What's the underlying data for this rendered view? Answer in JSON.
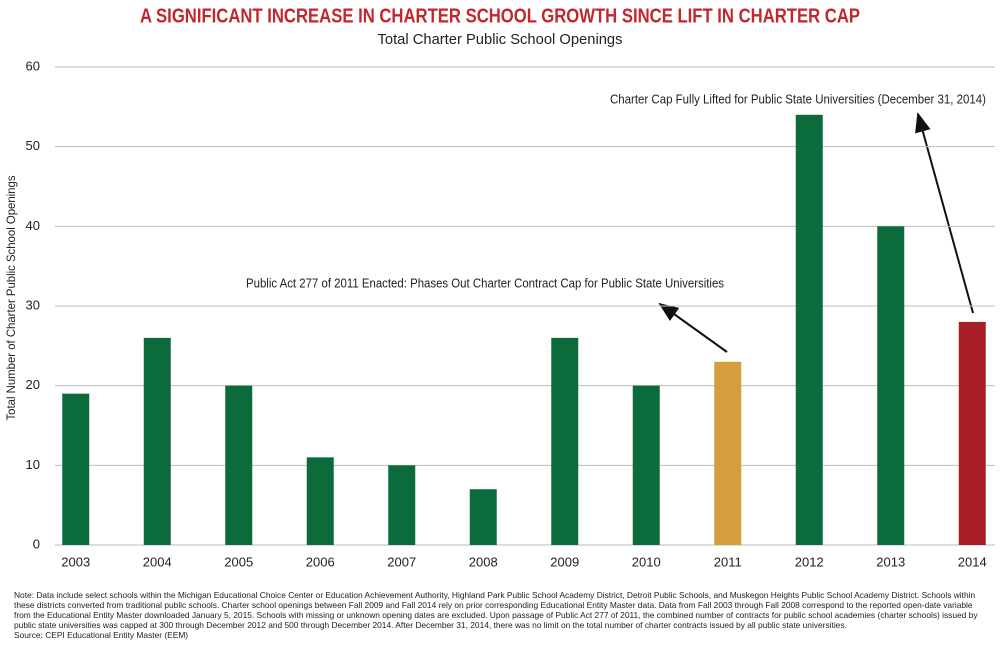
{
  "chart_data": {
    "type": "bar",
    "title": "A SIGNIFICANT INCREASE IN CHARTER SCHOOL GROWTH SINCE LIFT IN CHARTER CAP",
    "subtitle": "Total Charter Public School Openings",
    "y_label": "Total Number of Charter Public School Openings",
    "categories": [
      "2003",
      "2004",
      "2005",
      "2006",
      "2007",
      "2008",
      "2009",
      "2010",
      "2011",
      "2012",
      "2013",
      "2014"
    ],
    "values": [
      19,
      26,
      20,
      11,
      10,
      7,
      26,
      20,
      23,
      54,
      40,
      28
    ],
    "colors": [
      "#0b6b3a",
      "#0b6b3a",
      "#0b6b3a",
      "#0b6b3a",
      "#0b6b3a",
      "#0b6b3a",
      "#0b6b3a",
      "#0b6b3a",
      "#d69d3c",
      "#0b6b3a",
      "#0b6b3a",
      "#a71e27"
    ],
    "ylim": [
      0,
      60
    ],
    "yticks": [
      0,
      10,
      20,
      30,
      40,
      50,
      60
    ],
    "grid": true,
    "annotations": [
      {
        "text": "Public Act 277 of 2011 Enacted: Phases Out Charter Contract Cap for Public State Universities"
      },
      {
        "text": "Charter Cap Fully Lifted for Public State Universities (December 31, 2014)"
      }
    ],
    "note": "Note: Data include select schools within the Michigan Educational Choice Center or Education Achievement Authority, Highland Park Public School Academy District, Detroit Public Schools, and Muskegon Heights Public School Academy District. Schools within these districts converted from traditional public schools. Charter school openings between Fall 2009 and Fall 2014 rely on prior corresponding Educational Entity Master data. Data from Fall 2003 through Fall 2008 correspond to the reported open-date variable from the Educational Entity Master downloaded January 5, 2015. Schools with missing or unknown opening dates are excluded. Upon passage of Public Act 277 of 2011, the combined number of contracts for public school academies (charter schools) issued by public state universities was capped at 300 through December 2012 and 500 through December 2014. After December 31, 2014, there was no limit on the total number of charter contracts issued by all public state universities.",
    "source": "Source: CEPI Educational Entity Master (EEM)"
  }
}
